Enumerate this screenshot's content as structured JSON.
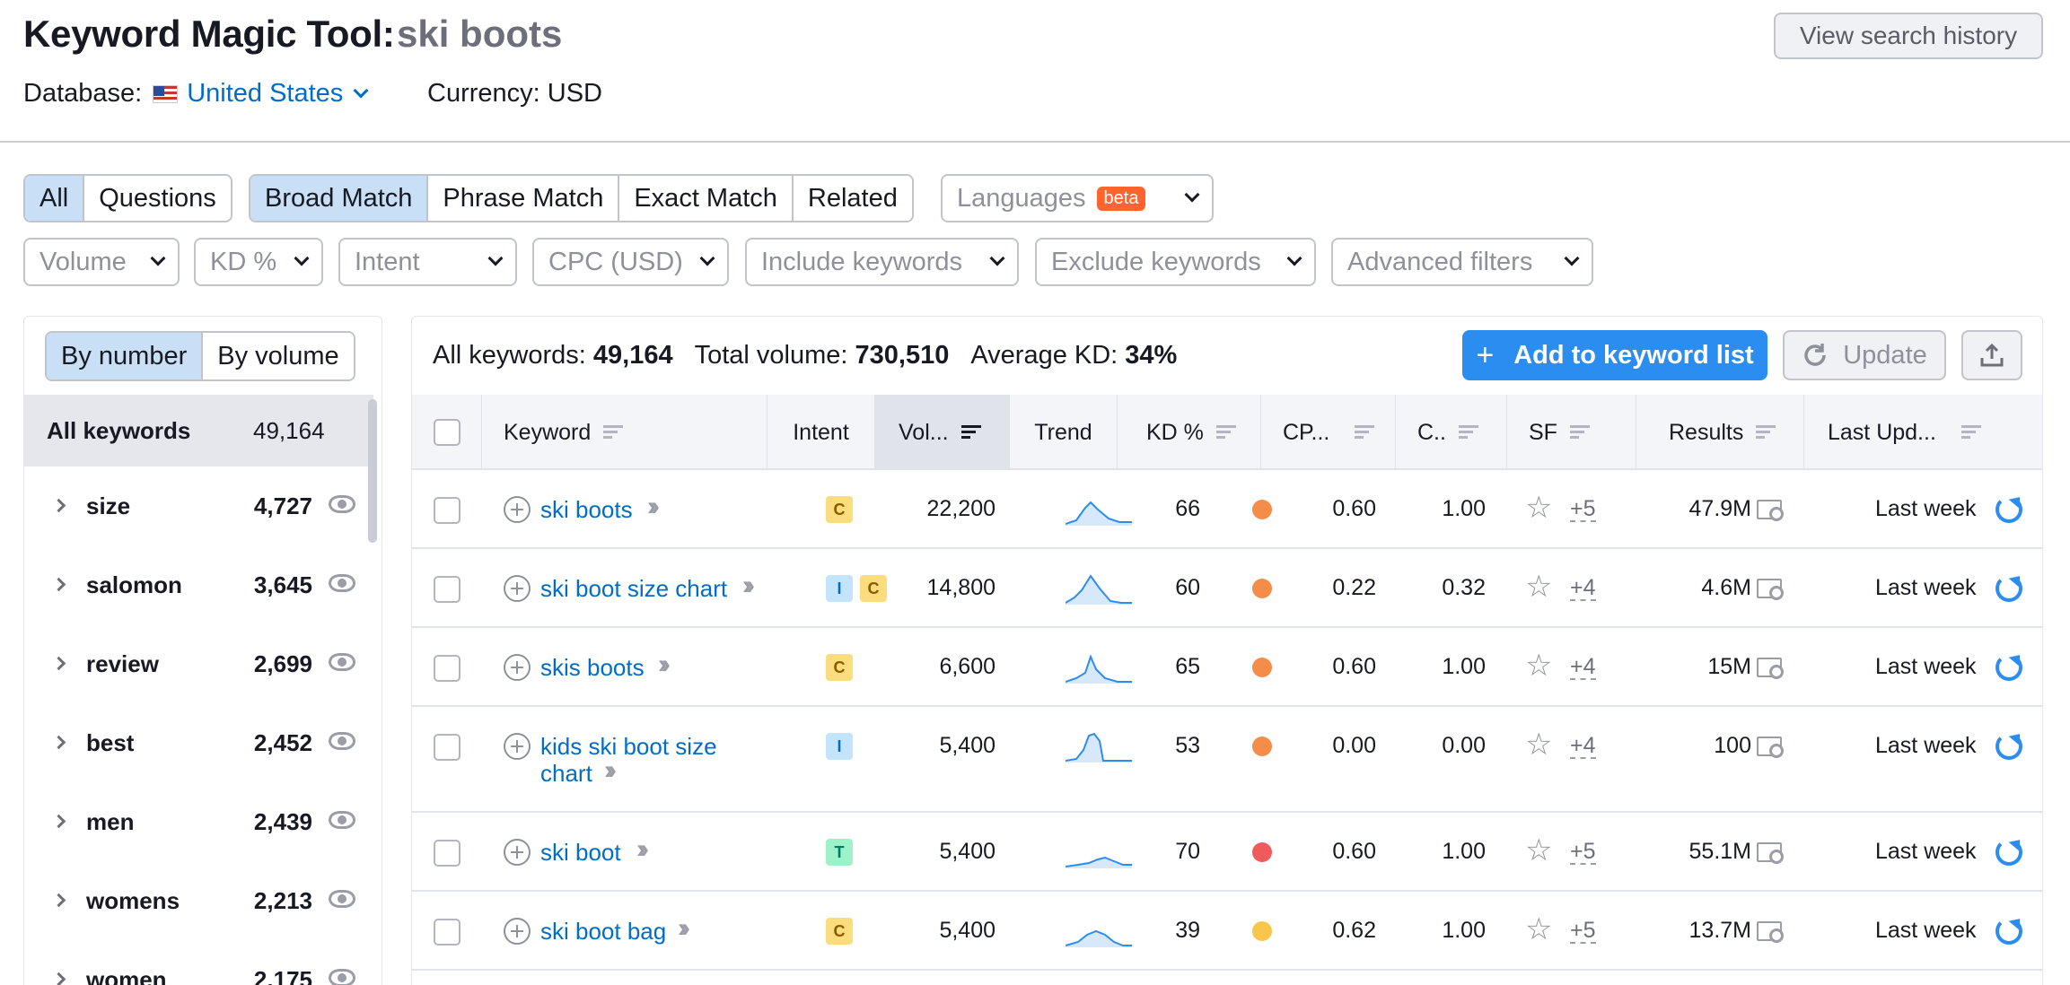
{
  "header": {
    "title": "Keyword Magic Tool:",
    "query": "ski boots",
    "database_label": "Database:",
    "database_value": "United States",
    "currency": "Currency: USD",
    "history_button": "View search history"
  },
  "tabs": {
    "scope": [
      "All",
      "Questions"
    ],
    "match": [
      "Broad Match",
      "Phrase Match",
      "Exact Match",
      "Related"
    ],
    "languages": "Languages",
    "beta": "beta"
  },
  "filters": [
    "Volume",
    "KD %",
    "Intent",
    "CPC (USD)",
    "Include keywords",
    "Exclude keywords",
    "Advanced filters"
  ],
  "sidebar": {
    "sort_options": [
      "By number",
      "By volume"
    ],
    "all_label": "All keywords",
    "all_count": "49,164",
    "groups": [
      {
        "label": "size",
        "count": "4,727"
      },
      {
        "label": "salomon",
        "count": "3,645"
      },
      {
        "label": "review",
        "count": "2,699"
      },
      {
        "label": "best",
        "count": "2,452"
      },
      {
        "label": "men",
        "count": "2,439"
      },
      {
        "label": "womens",
        "count": "2,213"
      },
      {
        "label": "women",
        "count": "2,175"
      }
    ]
  },
  "summary": {
    "all_label": "All keywords:",
    "all_value": "49,164",
    "volume_label": "Total volume:",
    "volume_value": "730,510",
    "kd_label": "Average KD:",
    "kd_value": "34%"
  },
  "actions": {
    "add_list": "Add to keyword list",
    "update": "Update"
  },
  "table": {
    "columns": [
      "Keyword",
      "Intent",
      "Vol...",
      "Trend",
      "KD %",
      "CP...",
      "C..",
      "SF",
      "Results",
      "Last Upd..."
    ],
    "rows": [
      {
        "keyword": "ski boots",
        "intents": [
          "C"
        ],
        "volume": "22,200",
        "kd": "66",
        "kd_color": "#f48c4a",
        "cpc": "0.60",
        "com": "1.00",
        "sf": "+5",
        "results": "47.9M",
        "updated": "Last week"
      },
      {
        "keyword": "ski boot size chart",
        "intents": [
          "I",
          "C"
        ],
        "volume": "14,800",
        "kd": "60",
        "kd_color": "#f48c4a",
        "cpc": "0.22",
        "com": "0.32",
        "sf": "+4",
        "results": "4.6M",
        "updated": "Last week"
      },
      {
        "keyword": "skis boots",
        "intents": [
          "C"
        ],
        "volume": "6,600",
        "kd": "65",
        "kd_color": "#f48c4a",
        "cpc": "0.60",
        "com": "1.00",
        "sf": "+4",
        "results": "15M",
        "updated": "Last week"
      },
      {
        "keyword_line1": "kids ski boot size",
        "keyword_line2": "chart",
        "intents": [
          "I"
        ],
        "volume": "5,400",
        "kd": "53",
        "kd_color": "#f48c4a",
        "cpc": "0.00",
        "com": "0.00",
        "sf": "+4",
        "results": "100",
        "updated": "Last week"
      },
      {
        "keyword": "ski boot",
        "intents": [
          "T"
        ],
        "volume": "5,400",
        "kd": "70",
        "kd_color": "#ef5a5a",
        "cpc": "0.60",
        "com": "1.00",
        "sf": "+5",
        "results": "55.1M",
        "updated": "Last week"
      },
      {
        "keyword": "ski boot bag",
        "intents": [
          "C"
        ],
        "volume": "5,400",
        "kd": "39",
        "kd_color": "#f8c64a",
        "cpc": "0.62",
        "com": "1.00",
        "sf": "+5",
        "results": "13.7M",
        "updated": "Last week"
      }
    ]
  },
  "colors": {
    "accent": "#2b8def",
    "link": "#006dca",
    "active_segment": "#c8dff6"
  }
}
